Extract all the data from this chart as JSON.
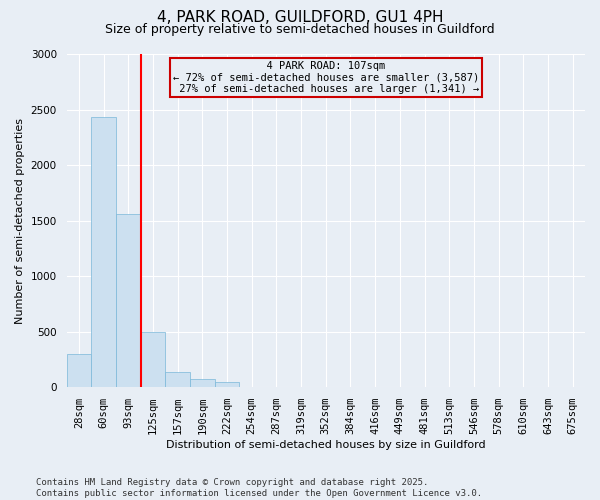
{
  "title_line1": "4, PARK ROAD, GUILDFORD, GU1 4PH",
  "title_line2": "Size of property relative to semi-detached houses in Guildford",
  "xlabel": "Distribution of semi-detached houses by size in Guildford",
  "ylabel": "Number of semi-detached properties",
  "footnote": "Contains HM Land Registry data © Crown copyright and database right 2025.\nContains public sector information licensed under the Open Government Licence v3.0.",
  "categories": [
    "28sqm",
    "60sqm",
    "93sqm",
    "125sqm",
    "157sqm",
    "190sqm",
    "222sqm",
    "254sqm",
    "287sqm",
    "319sqm",
    "352sqm",
    "384sqm",
    "416sqm",
    "449sqm",
    "481sqm",
    "513sqm",
    "546sqm",
    "578sqm",
    "610sqm",
    "643sqm",
    "675sqm"
  ],
  "values": [
    300,
    2430,
    1560,
    500,
    140,
    75,
    50,
    0,
    0,
    0,
    0,
    0,
    0,
    0,
    0,
    0,
    0,
    0,
    0,
    0,
    0
  ],
  "bar_color": "#cce0f0",
  "bar_edge_color": "#7ab8d9",
  "ylim": [
    0,
    3000
  ],
  "yticks": [
    0,
    500,
    1000,
    1500,
    2000,
    2500,
    3000
  ],
  "property_label": "4 PARK ROAD: 107sqm",
  "pct_smaller": 72,
  "pct_smaller_count": 3587,
  "pct_larger": 27,
  "pct_larger_count": 1341,
  "vline_x": 2.5,
  "annotation_box_color": "#cc0000",
  "background_color": "#e8eef5",
  "grid_color": "#ffffff",
  "title_fontsize": 11,
  "subtitle_fontsize": 9,
  "axis_label_fontsize": 8,
  "tick_fontsize": 7.5,
  "footnote_fontsize": 6.5
}
